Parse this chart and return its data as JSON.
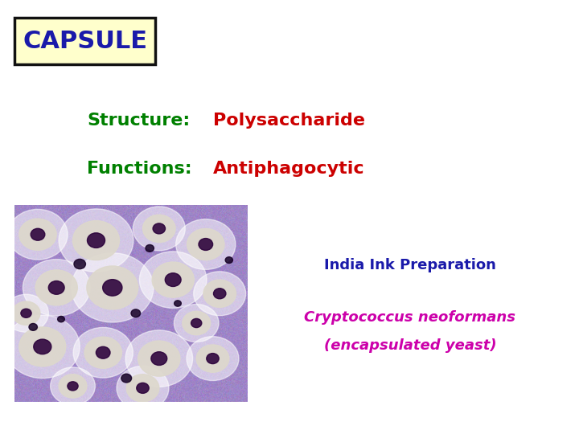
{
  "title": "CAPSULE",
  "title_color": "#1a1aaa",
  "title_bg": "#ffffcc",
  "title_border": "#111111",
  "structure_label": "Structure:",
  "structure_value": "Polysaccharide",
  "functions_label": "Functions:",
  "functions_value": "Antiphagocytic",
  "label_color": "#008000",
  "value_color": "#cc0000",
  "ink_text": "India Ink Preparation",
  "ink_color": "#1a1aaa",
  "crypto_line1": "Cryptococcus neoformans",
  "crypto_line2": "(encapsulated yeast)",
  "crypto_color": "#cc00aa",
  "bg_color": "#ffffff",
  "image_border_color": "#3333cc"
}
